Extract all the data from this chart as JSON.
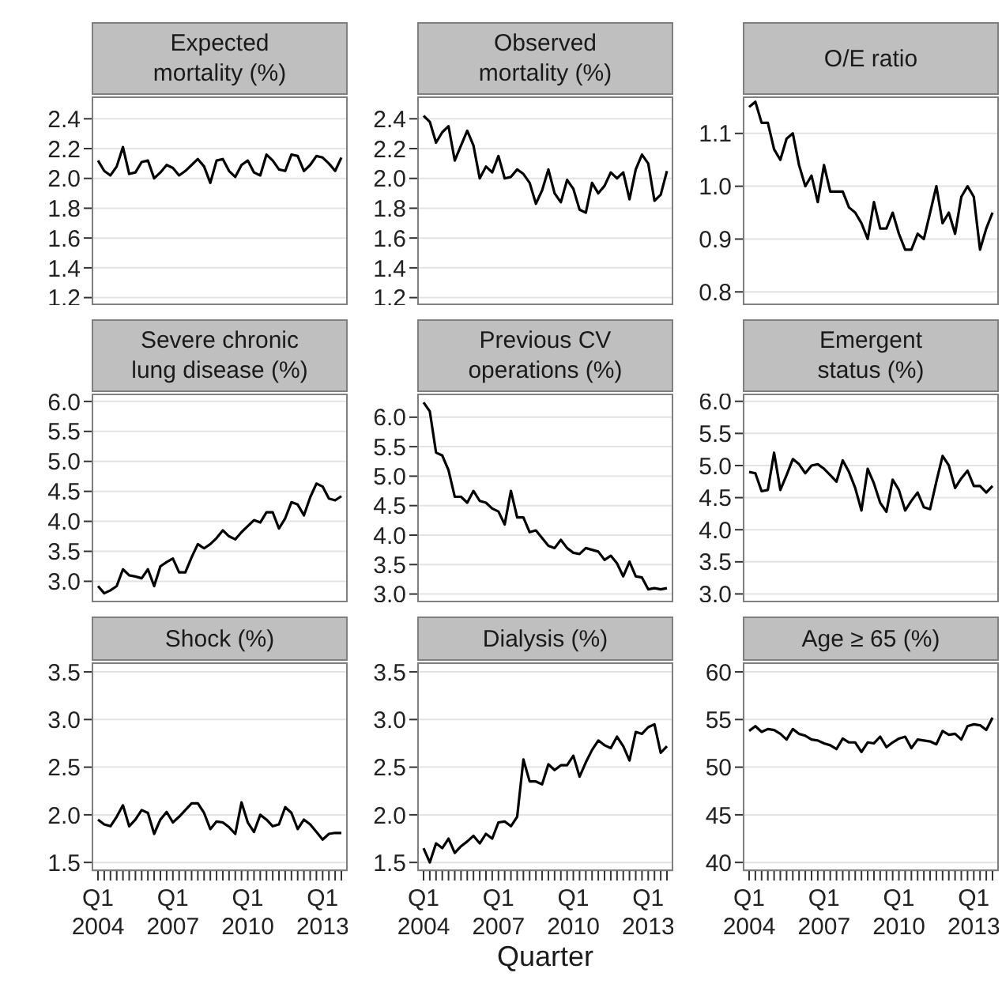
{
  "chart_data": [
    {
      "type": "line",
      "title": "Expected\nmortality (%)",
      "categories": [
        null,
        null,
        null,
        null,
        null,
        null,
        null,
        null,
        null,
        null,
        null,
        null,
        null,
        null,
        null,
        null,
        null,
        null,
        null,
        null,
        null,
        null,
        null,
        null,
        null,
        null,
        null,
        null,
        null,
        null,
        null,
        null,
        null,
        null,
        null,
        null,
        null,
        null,
        null,
        null
      ],
      "tick_labels": "y",
      "ylim": [
        1.15,
        2.55
      ],
      "yticks": [
        1.2,
        1.4,
        1.6,
        1.8,
        {
          "value": 2,
          "label": "2.0"
        },
        2.2,
        2.4
      ],
      "grid": "y",
      "series": [
        {
          "color": "#000000",
          "values": [
            2.12,
            2.05,
            2.02,
            2.08,
            2.21,
            2.03,
            2.04,
            2.11,
            2.12,
            2.0,
            2.04,
            2.09,
            2.07,
            2.02,
            2.05,
            2.09,
            2.13,
            2.08,
            1.97,
            2.12,
            2.13,
            2.05,
            2.01,
            2.09,
            2.12,
            2.04,
            2.02,
            2.16,
            2.12,
            2.06,
            2.05,
            2.16,
            2.15,
            2.05,
            2.09,
            2.15,
            2.14,
            2.1,
            2.05,
            2.14
          ]
        }
      ]
    },
    {
      "type": "line",
      "title": "Observed\nmortality (%)",
      "categories": [
        null,
        null,
        null,
        null,
        null,
        null,
        null,
        null,
        null,
        null,
        null,
        null,
        null,
        null,
        null,
        null,
        null,
        null,
        null,
        null,
        null,
        null,
        null,
        null,
        null,
        null,
        null,
        null,
        null,
        null,
        null,
        null,
        null,
        null,
        null,
        null,
        null,
        null,
        null,
        null
      ],
      "tick_labels": "y",
      "ylim": [
        1.15,
        2.55
      ],
      "yticks": [
        1.2,
        1.4,
        1.6,
        1.8,
        {
          "value": 2,
          "label": "2.0"
        },
        2.2,
        2.4
      ],
      "grid": "y",
      "series": [
        {
          "color": "#000000",
          "values": [
            2.42,
            2.38,
            2.24,
            2.31,
            2.35,
            2.12,
            2.22,
            2.32,
            2.22,
            2.0,
            2.08,
            2.04,
            2.15,
            2.0,
            2.01,
            2.06,
            2.03,
            1.97,
            1.83,
            1.92,
            2.06,
            1.9,
            1.84,
            1.99,
            1.93,
            1.79,
            1.77,
            1.97,
            1.9,
            1.95,
            2.04,
            2.0,
            2.04,
            1.86,
            2.06,
            2.16,
            2.1,
            1.85,
            1.89,
            2.05
          ]
        }
      ]
    },
    {
      "type": "line",
      "title": "O/E ratio",
      "categories": [
        null,
        null,
        null,
        null,
        null,
        null,
        null,
        null,
        null,
        null,
        null,
        null,
        null,
        null,
        null,
        null,
        null,
        null,
        null,
        null,
        null,
        null,
        null,
        null,
        null,
        null,
        null,
        null,
        null,
        null,
        null,
        null,
        null,
        null,
        null,
        null,
        null,
        null,
        null,
        null
      ],
      "tick_labels": "y",
      "ylim": [
        0.775,
        1.17
      ],
      "yticks": [
        0.8,
        0.9,
        {
          "value": 1,
          "label": "1.0"
        },
        1.1
      ],
      "grid": "y",
      "series": [
        {
          "color": "#000000",
          "values": [
            1.15,
            1.16,
            1.12,
            1.12,
            1.07,
            1.05,
            1.09,
            1.1,
            1.04,
            1.0,
            1.02,
            0.97,
            1.04,
            0.99,
            0.99,
            0.99,
            0.96,
            0.95,
            0.93,
            0.9,
            0.97,
            0.92,
            0.92,
            0.95,
            0.91,
            0.88,
            0.88,
            0.91,
            0.9,
            0.95,
            1.0,
            0.93,
            0.95,
            0.91,
            0.98,
            1.0,
            0.98,
            0.88,
            0.92,
            0.95
          ]
        }
      ]
    },
    {
      "type": "line",
      "title": "Severe chronic\nlung disease (%)",
      "categories": [
        null,
        null,
        null,
        null,
        null,
        null,
        null,
        null,
        null,
        null,
        null,
        null,
        null,
        null,
        null,
        null,
        null,
        null,
        null,
        null,
        null,
        null,
        null,
        null,
        null,
        null,
        null,
        null,
        null,
        null,
        null,
        null,
        null,
        null,
        null,
        null,
        null,
        null,
        null,
        null
      ],
      "tick_labels": "y",
      "ylim": [
        2.65,
        6.13
      ],
      "yticks": [
        {
          "value": 3,
          "label": "3.0"
        },
        3.5,
        {
          "value": 4,
          "label": "4.0"
        },
        4.5,
        {
          "value": 5,
          "label": "5.0"
        },
        5.5,
        {
          "value": 6,
          "label": "6.0"
        }
      ],
      "grid": "y",
      "series": [
        {
          "color": "#000000",
          "values": [
            2.92,
            2.8,
            2.85,
            2.92,
            3.2,
            3.1,
            3.08,
            3.05,
            3.2,
            2.92,
            3.25,
            3.32,
            3.38,
            3.15,
            3.15,
            3.4,
            3.62,
            3.55,
            3.62,
            3.72,
            3.85,
            3.75,
            3.7,
            3.82,
            3.92,
            4.02,
            3.98,
            4.15,
            4.15,
            3.88,
            4.05,
            4.32,
            4.28,
            4.1,
            4.4,
            4.63,
            4.58,
            4.38,
            4.35,
            4.42
          ]
        }
      ]
    },
    {
      "type": "line",
      "title": "Previous CV\noperations (%)",
      "categories": [
        null,
        null,
        null,
        null,
        null,
        null,
        null,
        null,
        null,
        null,
        null,
        null,
        null,
        null,
        null,
        null,
        null,
        null,
        null,
        null,
        null,
        null,
        null,
        null,
        null,
        null,
        null,
        null,
        null,
        null,
        null,
        null,
        null,
        null,
        null,
        null,
        null,
        null,
        null,
        null
      ],
      "tick_labels": "y",
      "ylim": [
        2.86,
        6.4
      ],
      "yticks": [
        {
          "value": 3,
          "label": "3.0"
        },
        3.5,
        {
          "value": 4,
          "label": "4.0"
        },
        4.5,
        {
          "value": 5,
          "label": "5.0"
        },
        5.5,
        {
          "value": 6,
          "label": "6.0"
        }
      ],
      "grid": "y",
      "series": [
        {
          "color": "#000000",
          "values": [
            6.25,
            6.1,
            5.4,
            5.35,
            5.1,
            4.65,
            4.65,
            4.55,
            4.75,
            4.58,
            4.55,
            4.45,
            4.4,
            4.18,
            4.75,
            4.3,
            4.3,
            4.05,
            4.08,
            3.95,
            3.82,
            3.78,
            3.92,
            3.78,
            3.7,
            3.68,
            3.78,
            3.75,
            3.72,
            3.58,
            3.65,
            3.52,
            3.3,
            3.55,
            3.3,
            3.28,
            3.08,
            3.1,
            3.08,
            3.1
          ]
        }
      ]
    },
    {
      "type": "line",
      "title": "Emergent\nstatus (%)",
      "categories": [
        null,
        null,
        null,
        null,
        null,
        null,
        null,
        null,
        null,
        null,
        null,
        null,
        null,
        null,
        null,
        null,
        null,
        null,
        null,
        null,
        null,
        null,
        null,
        null,
        null,
        null,
        null,
        null,
        null,
        null,
        null,
        null,
        null,
        null,
        null,
        null,
        null,
        null,
        null,
        null
      ],
      "tick_labels": "y",
      "ylim": [
        2.87,
        6.12
      ],
      "yticks": [
        {
          "value": 3,
          "label": "3.0"
        },
        3.5,
        {
          "value": 4,
          "label": "4.0"
        },
        4.5,
        {
          "value": 5,
          "label": "5.0"
        },
        5.5,
        {
          "value": 6,
          "label": "6.0"
        }
      ],
      "grid": "y",
      "series": [
        {
          "color": "#000000",
          "values": [
            4.9,
            4.88,
            4.6,
            4.62,
            5.2,
            4.62,
            4.85,
            5.1,
            5.02,
            4.88,
            5.0,
            5.02,
            4.95,
            4.85,
            4.75,
            5.08,
            4.9,
            4.65,
            4.3,
            4.95,
            4.72,
            4.42,
            4.28,
            4.78,
            4.62,
            4.3,
            4.45,
            4.58,
            4.35,
            4.32,
            4.75,
            5.15,
            5.0,
            4.65,
            4.8,
            4.92,
            4.68,
            4.68,
            4.58,
            4.68
          ]
        }
      ]
    },
    {
      "type": "line",
      "title": "Shock (%)",
      "categories": [
        "Q1\n2004",
        null,
        null,
        null,
        null,
        null,
        null,
        null,
        null,
        null,
        null,
        null,
        "Q1\n2007",
        null,
        null,
        null,
        null,
        null,
        null,
        null,
        null,
        null,
        null,
        null,
        "Q1\n2010",
        null,
        null,
        null,
        null,
        null,
        null,
        null,
        null,
        null,
        null,
        null,
        "Q1\n2013",
        null,
        null,
        null
      ],
      "ylim": [
        1.41,
        3.6
      ],
      "yticks": [
        1.5,
        {
          "value": 2,
          "label": "2.0"
        },
        2.5,
        {
          "value": 3,
          "label": "3.0"
        },
        3.5
      ],
      "grid": "y",
      "series": [
        {
          "color": "#000000",
          "values": [
            1.95,
            1.9,
            1.88,
            1.98,
            2.1,
            1.88,
            1.95,
            2.05,
            2.02,
            1.8,
            1.95,
            2.03,
            1.92,
            1.98,
            2.05,
            2.12,
            2.12,
            2.02,
            1.85,
            1.93,
            1.92,
            1.87,
            1.8,
            2.13,
            1.92,
            1.82,
            2.0,
            1.95,
            1.88,
            1.9,
            2.08,
            2.02,
            1.85,
            1.95,
            1.9,
            1.82,
            1.74,
            1.8,
            1.81,
            1.81
          ]
        }
      ]
    },
    {
      "type": "line",
      "title": "Dialysis (%)",
      "xlabel": "Quarter",
      "categories": [
        "Q1\n2004",
        null,
        null,
        null,
        null,
        null,
        null,
        null,
        null,
        null,
        null,
        null,
        "Q1\n2007",
        null,
        null,
        null,
        null,
        null,
        null,
        null,
        null,
        null,
        null,
        null,
        "Q1\n2010",
        null,
        null,
        null,
        null,
        null,
        null,
        null,
        null,
        null,
        null,
        null,
        "Q1\n2013",
        null,
        null,
        null
      ],
      "ylim": [
        1.41,
        3.6
      ],
      "yticks": [
        1.5,
        {
          "value": 2,
          "label": "2.0"
        },
        2.5,
        {
          "value": 3,
          "label": "3.0"
        },
        3.5
      ],
      "grid": "y",
      "series": [
        {
          "color": "#000000",
          "values": [
            1.65,
            1.5,
            1.7,
            1.65,
            1.75,
            1.6,
            1.67,
            1.72,
            1.78,
            1.7,
            1.8,
            1.75,
            1.92,
            1.93,
            1.88,
            1.98,
            2.58,
            2.35,
            2.35,
            2.32,
            2.53,
            2.47,
            2.52,
            2.52,
            2.62,
            2.4,
            2.55,
            2.68,
            2.78,
            2.73,
            2.7,
            2.82,
            2.72,
            2.57,
            2.87,
            2.85,
            2.92,
            2.95,
            2.65,
            2.72
          ]
        }
      ]
    },
    {
      "type": "line",
      "title": "Age ≥ 65 (%)",
      "categories": [
        "Q1\n2004",
        null,
        null,
        null,
        null,
        null,
        null,
        null,
        null,
        null,
        null,
        null,
        "Q1\n2007",
        null,
        null,
        null,
        null,
        null,
        null,
        null,
        null,
        null,
        null,
        null,
        "Q1\n2010",
        null,
        null,
        null,
        null,
        null,
        null,
        null,
        null,
        null,
        null,
        null,
        "Q1\n2013",
        null,
        null,
        null
      ],
      "ylim": [
        39.1,
        61
      ],
      "yticks": [
        40,
        45,
        50,
        55,
        60
      ],
      "grid": "y",
      "series": [
        {
          "color": "#000000",
          "values": [
            53.8,
            54.3,
            53.7,
            54.0,
            53.9,
            53.5,
            52.9,
            54.0,
            53.5,
            53.3,
            52.9,
            52.8,
            52.5,
            52.3,
            51.9,
            53.0,
            52.6,
            52.6,
            51.6,
            52.6,
            52.5,
            53.2,
            52.1,
            52.6,
            53.0,
            53.2,
            52.0,
            52.9,
            52.8,
            52.7,
            52.4,
            53.8,
            53.4,
            53.5,
            52.9,
            54.3,
            54.5,
            54.4,
            53.9,
            55.2
          ]
        }
      ]
    }
  ]
}
